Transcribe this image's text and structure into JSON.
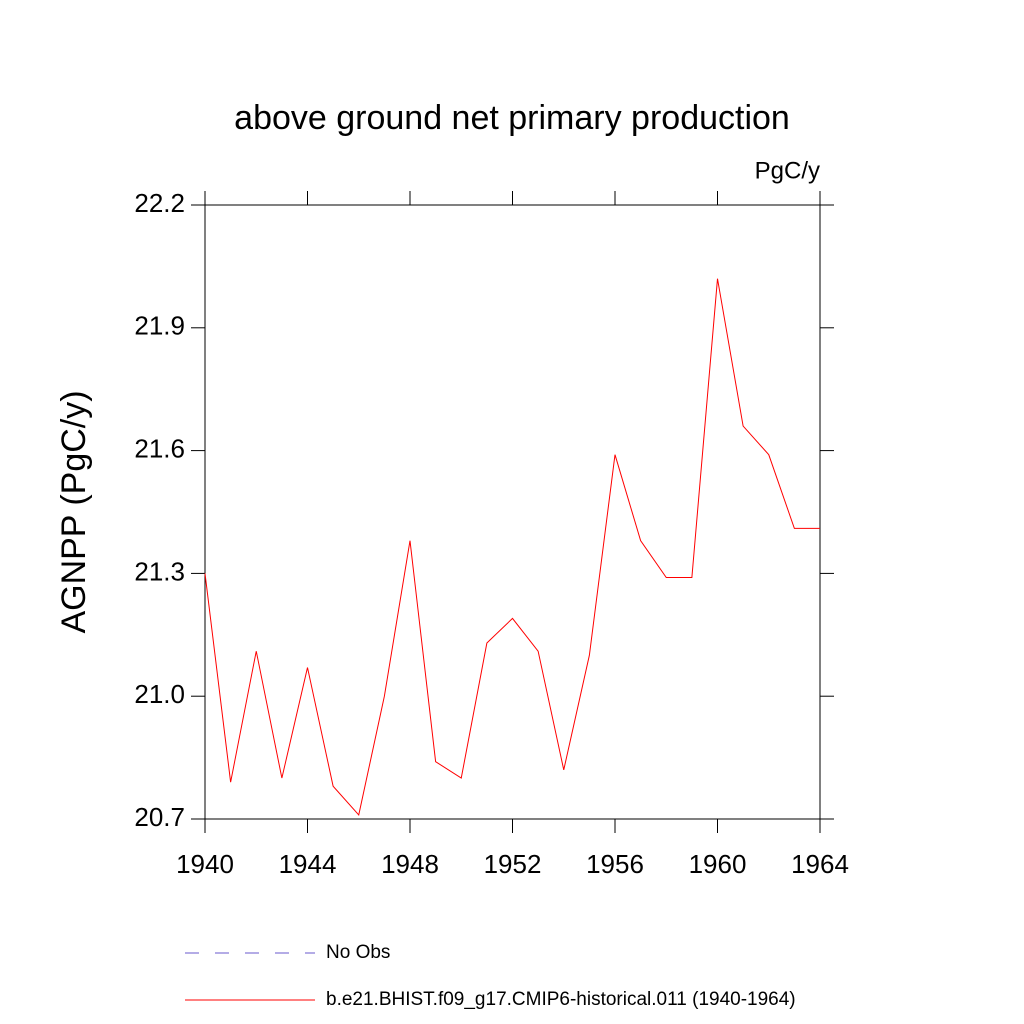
{
  "chart_data": {
    "type": "line",
    "title": "above ground net primary production",
    "units": "PgC/y",
    "y_label": "AGNPP  (PgC/y)",
    "x": [
      1940,
      1941,
      1942,
      1943,
      1944,
      1945,
      1946,
      1947,
      1948,
      1949,
      1950,
      1951,
      1952,
      1953,
      1954,
      1955,
      1956,
      1957,
      1958,
      1959,
      1960,
      1961,
      1962,
      1963,
      1964
    ],
    "series": [
      {
        "name": "No Obs",
        "color": "#6a5acd",
        "dash": true,
        "values": [
          null,
          null,
          null,
          null,
          null,
          null,
          null,
          null,
          null,
          null,
          null,
          null,
          null,
          null,
          null,
          null,
          null,
          null,
          null,
          null,
          null,
          null,
          null,
          null,
          null
        ]
      },
      {
        "name": "b.e21.BHIST.f09_g17.CMIP6-historical.011 (1940-1964)",
        "color": "#ff0000",
        "dash": false,
        "values": [
          21.3,
          20.79,
          21.11,
          20.8,
          21.07,
          20.78,
          20.71,
          21.0,
          21.38,
          20.84,
          20.8,
          21.13,
          21.19,
          21.11,
          20.82,
          21.1,
          21.59,
          21.38,
          21.29,
          21.29,
          22.02,
          21.66,
          21.59,
          21.41,
          21.41
        ]
      }
    ],
    "xlim": [
      1940,
      1964
    ],
    "xticks": [
      1940,
      1944,
      1948,
      1952,
      1956,
      1960,
      1964
    ],
    "ylim": [
      20.7,
      22.2
    ],
    "yticks": [
      20.7,
      {
        "value": 21,
        "label": "21.0"
      },
      21.3,
      21.6,
      21.9,
      22.2
    ]
  }
}
